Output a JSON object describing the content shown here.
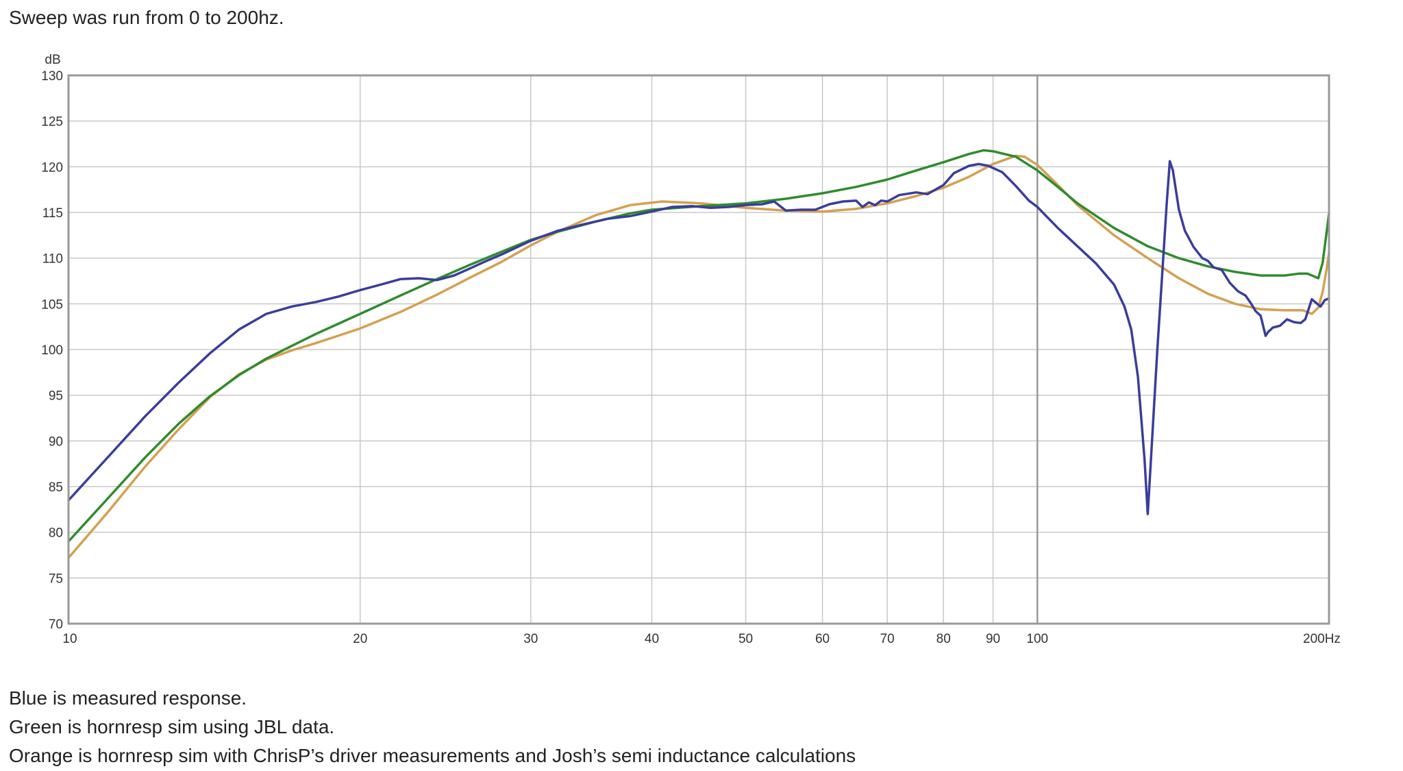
{
  "intro": "Sweep was run from 0 to 200hz.",
  "captions": [
    "Blue is measured response.",
    "Green is hornresp sim using JBL data.",
    "Orange is hornresp sim with ChrisP’s driver measurements and Josh’s semi inductance calculations"
  ],
  "colors": {
    "blue": "#3a3d9a",
    "green": "#2e8b2e",
    "orange": "#d4a050",
    "grid": "#c8c8c8",
    "frame": "#999999"
  },
  "chart_data": {
    "type": "line",
    "title": "",
    "x_scale": "log",
    "xlim": [
      10,
      200
    ],
    "ylim": [
      70,
      130
    ],
    "y_unit_label": "dB",
    "x_unit_label": "Hz",
    "x_ticks": [
      {
        "value": 10,
        "label": "10"
      },
      {
        "value": 20,
        "label": "20"
      },
      {
        "value": 30,
        "label": "30"
      },
      {
        "value": 40,
        "label": "40"
      },
      {
        "value": 50,
        "label": "50"
      },
      {
        "value": 60,
        "label": "60"
      },
      {
        "value": 70,
        "label": "70"
      },
      {
        "value": 80,
        "label": "80"
      },
      {
        "value": 90,
        "label": "90"
      },
      {
        "value": 100,
        "label": "100"
      },
      {
        "value": 200,
        "label": "200Hz"
      }
    ],
    "y_ticks": [
      {
        "value": 130,
        "label": "130"
      },
      {
        "value": 125,
        "label": "125"
      },
      {
        "value": 120,
        "label": "120"
      },
      {
        "value": 115,
        "label": "115"
      },
      {
        "value": 110,
        "label": "110"
      },
      {
        "value": 105,
        "label": "105"
      },
      {
        "value": 100,
        "label": "100"
      },
      {
        "value": 95,
        "label": "95"
      },
      {
        "value": 90,
        "label": "90"
      },
      {
        "value": 85,
        "label": "85"
      },
      {
        "value": 80,
        "label": "80"
      },
      {
        "value": 75,
        "label": "75"
      },
      {
        "value": 70,
        "label": "70"
      }
    ],
    "grid": true,
    "series": [
      {
        "color": "#3a3d9a",
        "points": [
          [
            10.0,
            83.5
          ],
          [
            11.0,
            88.3
          ],
          [
            12.0,
            92.7
          ],
          [
            13.0,
            96.4
          ],
          [
            14.0,
            99.6
          ],
          [
            15.0,
            102.2
          ],
          [
            16.0,
            103.9
          ],
          [
            17.0,
            104.7
          ],
          [
            18.0,
            105.2
          ],
          [
            19.0,
            105.8
          ],
          [
            20.0,
            106.5
          ],
          [
            21.0,
            107.1
          ],
          [
            22.0,
            107.7
          ],
          [
            23.0,
            107.8
          ],
          [
            24.0,
            107.6
          ],
          [
            25.0,
            108.1
          ],
          [
            26.0,
            108.9
          ],
          [
            27.0,
            109.7
          ],
          [
            28.0,
            110.4
          ],
          [
            30.0,
            111.9
          ],
          [
            32.0,
            113.0
          ],
          [
            34.0,
            113.7
          ],
          [
            36.0,
            114.3
          ],
          [
            38.0,
            114.6
          ],
          [
            40.0,
            115.1
          ],
          [
            42.0,
            115.6
          ],
          [
            44.0,
            115.7
          ],
          [
            46.0,
            115.5
          ],
          [
            48.0,
            115.6
          ],
          [
            50.0,
            115.8
          ],
          [
            52.0,
            115.9
          ],
          [
            53.5,
            116.2
          ],
          [
            55.0,
            115.2
          ],
          [
            57.0,
            115.3
          ],
          [
            59.0,
            115.3
          ],
          [
            61.0,
            115.9
          ],
          [
            63.0,
            116.2
          ],
          [
            65.0,
            116.3
          ],
          [
            66.0,
            115.6
          ],
          [
            67.0,
            116.1
          ],
          [
            68.0,
            115.8
          ],
          [
            69.0,
            116.3
          ],
          [
            70.0,
            116.2
          ],
          [
            72.0,
            116.9
          ],
          [
            75.0,
            117.2
          ],
          [
            77.0,
            117.0
          ],
          [
            80.0,
            118.0
          ],
          [
            82.0,
            119.3
          ],
          [
            85.0,
            120.1
          ],
          [
            87.0,
            120.3
          ],
          [
            89.0,
            120.1
          ],
          [
            92.0,
            119.4
          ],
          [
            95.0,
            117.9
          ],
          [
            98.0,
            116.3
          ],
          [
            100.0,
            115.6
          ],
          [
            105.0,
            113.3
          ],
          [
            110.0,
            111.3
          ],
          [
            115.0,
            109.4
          ],
          [
            120.0,
            107.1
          ],
          [
            123.0,
            104.7
          ],
          [
            125.0,
            102.2
          ],
          [
            127.0,
            97.0
          ],
          [
            129.0,
            88.0
          ],
          [
            130.0,
            82.0
          ],
          [
            131.0,
            88.0
          ],
          [
            133.0,
            100.0
          ],
          [
            134.5,
            108.0
          ],
          [
            136.0,
            116.0
          ],
          [
            137.0,
            120.6
          ],
          [
            138.0,
            119.6
          ],
          [
            140.0,
            115.3
          ],
          [
            142.0,
            113.0
          ],
          [
            145.0,
            111.2
          ],
          [
            148.0,
            110.0
          ],
          [
            150.0,
            109.7
          ],
          [
            152.0,
            109.0
          ],
          [
            155.0,
            108.7
          ],
          [
            158.0,
            107.3
          ],
          [
            161.0,
            106.4
          ],
          [
            164.0,
            105.9
          ],
          [
            166.0,
            105.1
          ],
          [
            168.0,
            104.2
          ],
          [
            170.0,
            103.7
          ],
          [
            171.0,
            102.6
          ],
          [
            172.0,
            101.5
          ],
          [
            173.0,
            101.9
          ],
          [
            175.0,
            102.4
          ],
          [
            178.0,
            102.6
          ],
          [
            181.0,
            103.3
          ],
          [
            184.0,
            103.0
          ],
          [
            187.0,
            102.9
          ],
          [
            189.0,
            103.3
          ],
          [
            192.0,
            105.5
          ],
          [
            194.0,
            105.1
          ],
          [
            196.0,
            104.7
          ],
          [
            198.0,
            105.4
          ],
          [
            200.0,
            105.6
          ]
        ]
      },
      {
        "color": "#2e8b2e",
        "points": [
          [
            10.0,
            79.0
          ],
          [
            11.0,
            83.8
          ],
          [
            12.0,
            88.2
          ],
          [
            13.0,
            91.9
          ],
          [
            14.0,
            94.9
          ],
          [
            15.0,
            97.2
          ],
          [
            16.0,
            99.0
          ],
          [
            17.0,
            100.4
          ],
          [
            18.0,
            101.7
          ],
          [
            20.0,
            103.9
          ],
          [
            22.0,
            105.9
          ],
          [
            24.0,
            107.7
          ],
          [
            26.0,
            109.3
          ],
          [
            28.0,
            110.7
          ],
          [
            30.0,
            112.0
          ],
          [
            32.0,
            112.9
          ],
          [
            35.0,
            114.0
          ],
          [
            38.0,
            114.9
          ],
          [
            40.0,
            115.3
          ],
          [
            45.0,
            115.7
          ],
          [
            50.0,
            116.0
          ],
          [
            55.0,
            116.5
          ],
          [
            60.0,
            117.1
          ],
          [
            65.0,
            117.8
          ],
          [
            70.0,
            118.6
          ],
          [
            75.0,
            119.6
          ],
          [
            80.0,
            120.5
          ],
          [
            85.0,
            121.4
          ],
          [
            88.0,
            121.8
          ],
          [
            90.0,
            121.7
          ],
          [
            95.0,
            121.1
          ],
          [
            100.0,
            119.6
          ],
          [
            105.0,
            117.8
          ],
          [
            110.0,
            116.0
          ],
          [
            120.0,
            113.3
          ],
          [
            130.0,
            111.3
          ],
          [
            140.0,
            110.0
          ],
          [
            150.0,
            109.1
          ],
          [
            160.0,
            108.5
          ],
          [
            170.0,
            108.1
          ],
          [
            180.0,
            108.1
          ],
          [
            186.0,
            108.3
          ],
          [
            190.0,
            108.3
          ],
          [
            193.0,
            108.0
          ],
          [
            195.0,
            107.8
          ],
          [
            197.0,
            109.5
          ],
          [
            198.5,
            112.2
          ],
          [
            200.0,
            114.9
          ]
        ]
      },
      {
        "color": "#d4a050",
        "points": [
          [
            10.0,
            77.2
          ],
          [
            11.0,
            82.3
          ],
          [
            12.0,
            87.2
          ],
          [
            13.0,
            91.3
          ],
          [
            14.0,
            94.8
          ],
          [
            15.0,
            97.3
          ],
          [
            16.0,
            98.9
          ],
          [
            17.0,
            99.9
          ],
          [
            18.0,
            100.7
          ],
          [
            20.0,
            102.3
          ],
          [
            22.0,
            104.1
          ],
          [
            24.0,
            106.0
          ],
          [
            26.0,
            107.9
          ],
          [
            28.0,
            109.6
          ],
          [
            30.0,
            111.4
          ],
          [
            32.0,
            112.9
          ],
          [
            35.0,
            114.7
          ],
          [
            38.0,
            115.8
          ],
          [
            41.0,
            116.2
          ],
          [
            45.0,
            116.0
          ],
          [
            50.0,
            115.5
          ],
          [
            55.0,
            115.2
          ],
          [
            60.0,
            115.1
          ],
          [
            65.0,
            115.4
          ],
          [
            70.0,
            116.0
          ],
          [
            75.0,
            116.8
          ],
          [
            80.0,
            117.7
          ],
          [
            85.0,
            118.9
          ],
          [
            90.0,
            120.3
          ],
          [
            95.0,
            121.2
          ],
          [
            97.0,
            121.1
          ],
          [
            100.0,
            120.2
          ],
          [
            105.0,
            118.0
          ],
          [
            110.0,
            115.8
          ],
          [
            120.0,
            112.5
          ],
          [
            130.0,
            110.0
          ],
          [
            140.0,
            107.8
          ],
          [
            150.0,
            106.1
          ],
          [
            160.0,
            105.0
          ],
          [
            170.0,
            104.4
          ],
          [
            180.0,
            104.3
          ],
          [
            188.0,
            104.3
          ],
          [
            192.0,
            103.9
          ],
          [
            195.0,
            104.6
          ],
          [
            197.0,
            106.3
          ],
          [
            199.0,
            109.0
          ],
          [
            200.0,
            110.6
          ]
        ]
      }
    ]
  }
}
